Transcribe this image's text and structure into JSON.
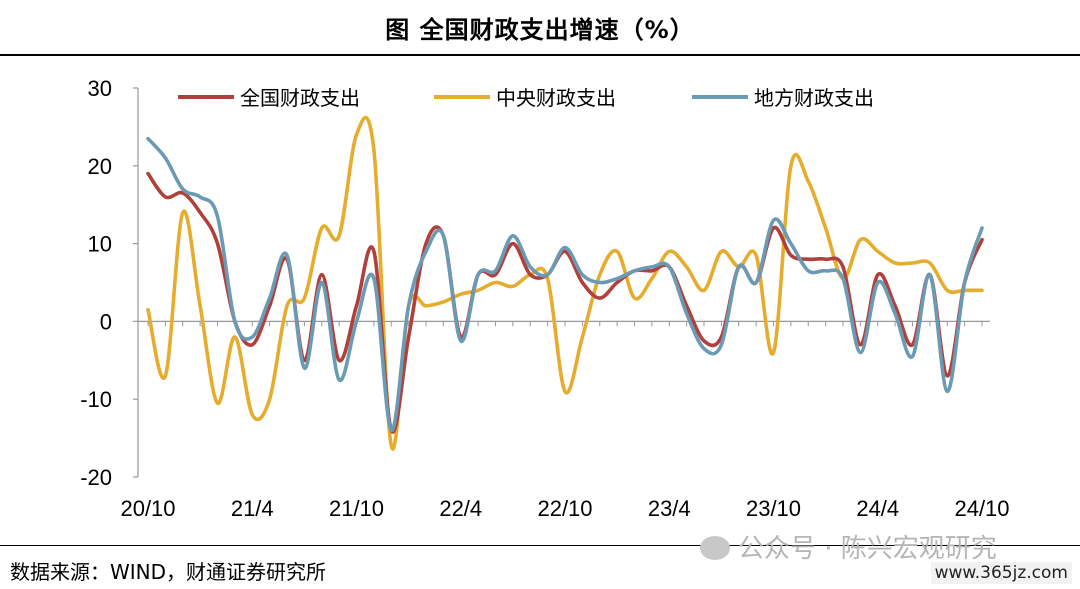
{
  "title": "图  全国财政支出增速（%）",
  "source": "数据来源：WIND，财通证券研究所",
  "watermark": "公众号 · 陈兴宏观研究",
  "site": "www.365jz.com",
  "chart_data": {
    "type": "line",
    "ylim": [
      -20,
      30
    ],
    "yticks": [
      -20,
      -10,
      0,
      10,
      20,
      30
    ],
    "xtick_labels": [
      "20/10",
      "21/4",
      "21/10",
      "22/4",
      "22/10",
      "23/4",
      "23/10",
      "24/4",
      "24/10"
    ],
    "x": [
      "20/10",
      "20/11",
      "20/12",
      "21/1",
      "21/2",
      "21/3",
      "21/4",
      "21/5",
      "21/6",
      "21/7",
      "21/8",
      "21/9",
      "21/10",
      "21/11",
      "21/12",
      "22/1",
      "22/2",
      "22/3",
      "22/4",
      "22/5",
      "22/6",
      "22/7",
      "22/8",
      "22/9",
      "22/10",
      "22/11",
      "22/12",
      "23/1",
      "23/2",
      "23/3",
      "23/4",
      "23/5",
      "23/6",
      "23/7",
      "23/8",
      "23/9",
      "23/10",
      "23/11",
      "23/12",
      "24/1",
      "24/2",
      "24/3",
      "24/4",
      "24/5",
      "24/6",
      "24/7",
      "24/8",
      "24/9",
      "24/10"
    ],
    "legend_position": "top",
    "series": [
      {
        "name": "全国财政支出",
        "color": "#b0403b",
        "values": [
          19.0,
          16.0,
          16.5,
          14.0,
          10.0,
          0.0,
          -3.0,
          2.0,
          8.0,
          -5.0,
          6.0,
          -5.0,
          2.0,
          9.0,
          -14.0,
          -2.0,
          10.0,
          11.0,
          -2.0,
          6.0,
          6.0,
          10.0,
          6.0,
          6.0,
          9.0,
          5.0,
          3.0,
          5.0,
          6.5,
          6.5,
          7.0,
          2.0,
          -2.5,
          -2.0,
          7.0,
          5.0,
          12.0,
          8.5,
          8.0,
          8.0,
          7.0,
          -3.0,
          6.0,
          2.0,
          -3.0,
          6.0,
          -7.0,
          5.0,
          10.5
        ]
      },
      {
        "name": "中央财政支出",
        "color": "#e6ac2e",
        "values": [
          1.5,
          -7.0,
          14.0,
          2.0,
          -10.5,
          -2.0,
          -12.0,
          -10.0,
          2.0,
          3.0,
          12.0,
          11.0,
          24.0,
          22.0,
          -16.0,
          2.0,
          2.0,
          2.5,
          3.5,
          4.0,
          5.0,
          4.5,
          6.0,
          5.5,
          -9.0,
          -2.0,
          6.0,
          9.0,
          3.0,
          5.5,
          9.0,
          7.0,
          4.0,
          9.0,
          7.0,
          8.5,
          -4.0,
          20.0,
          18.0,
          12.0,
          5.5,
          10.5,
          9.0,
          7.5,
          7.5,
          7.5,
          4.0,
          4.0,
          4.0
        ]
      },
      {
        "name": "地方财政支出",
        "color": "#6b9ab5",
        "values": [
          23.5,
          21.0,
          17.0,
          16.0,
          13.5,
          0.0,
          -2.0,
          3.0,
          8.5,
          -6.0,
          5.0,
          -7.5,
          0.0,
          5.5,
          -14.0,
          2.0,
          9.0,
          11.0,
          -2.5,
          6.0,
          6.5,
          11.0,
          7.0,
          6.0,
          9.5,
          6.0,
          5.0,
          5.5,
          6.5,
          7.0,
          7.0,
          1.0,
          -3.5,
          -3.0,
          7.0,
          5.0,
          13.0,
          10.0,
          6.5,
          6.5,
          5.5,
          -4.0,
          5.0,
          1.0,
          -4.5,
          6.0,
          -9.0,
          5.0,
          12.0
        ]
      }
    ]
  }
}
